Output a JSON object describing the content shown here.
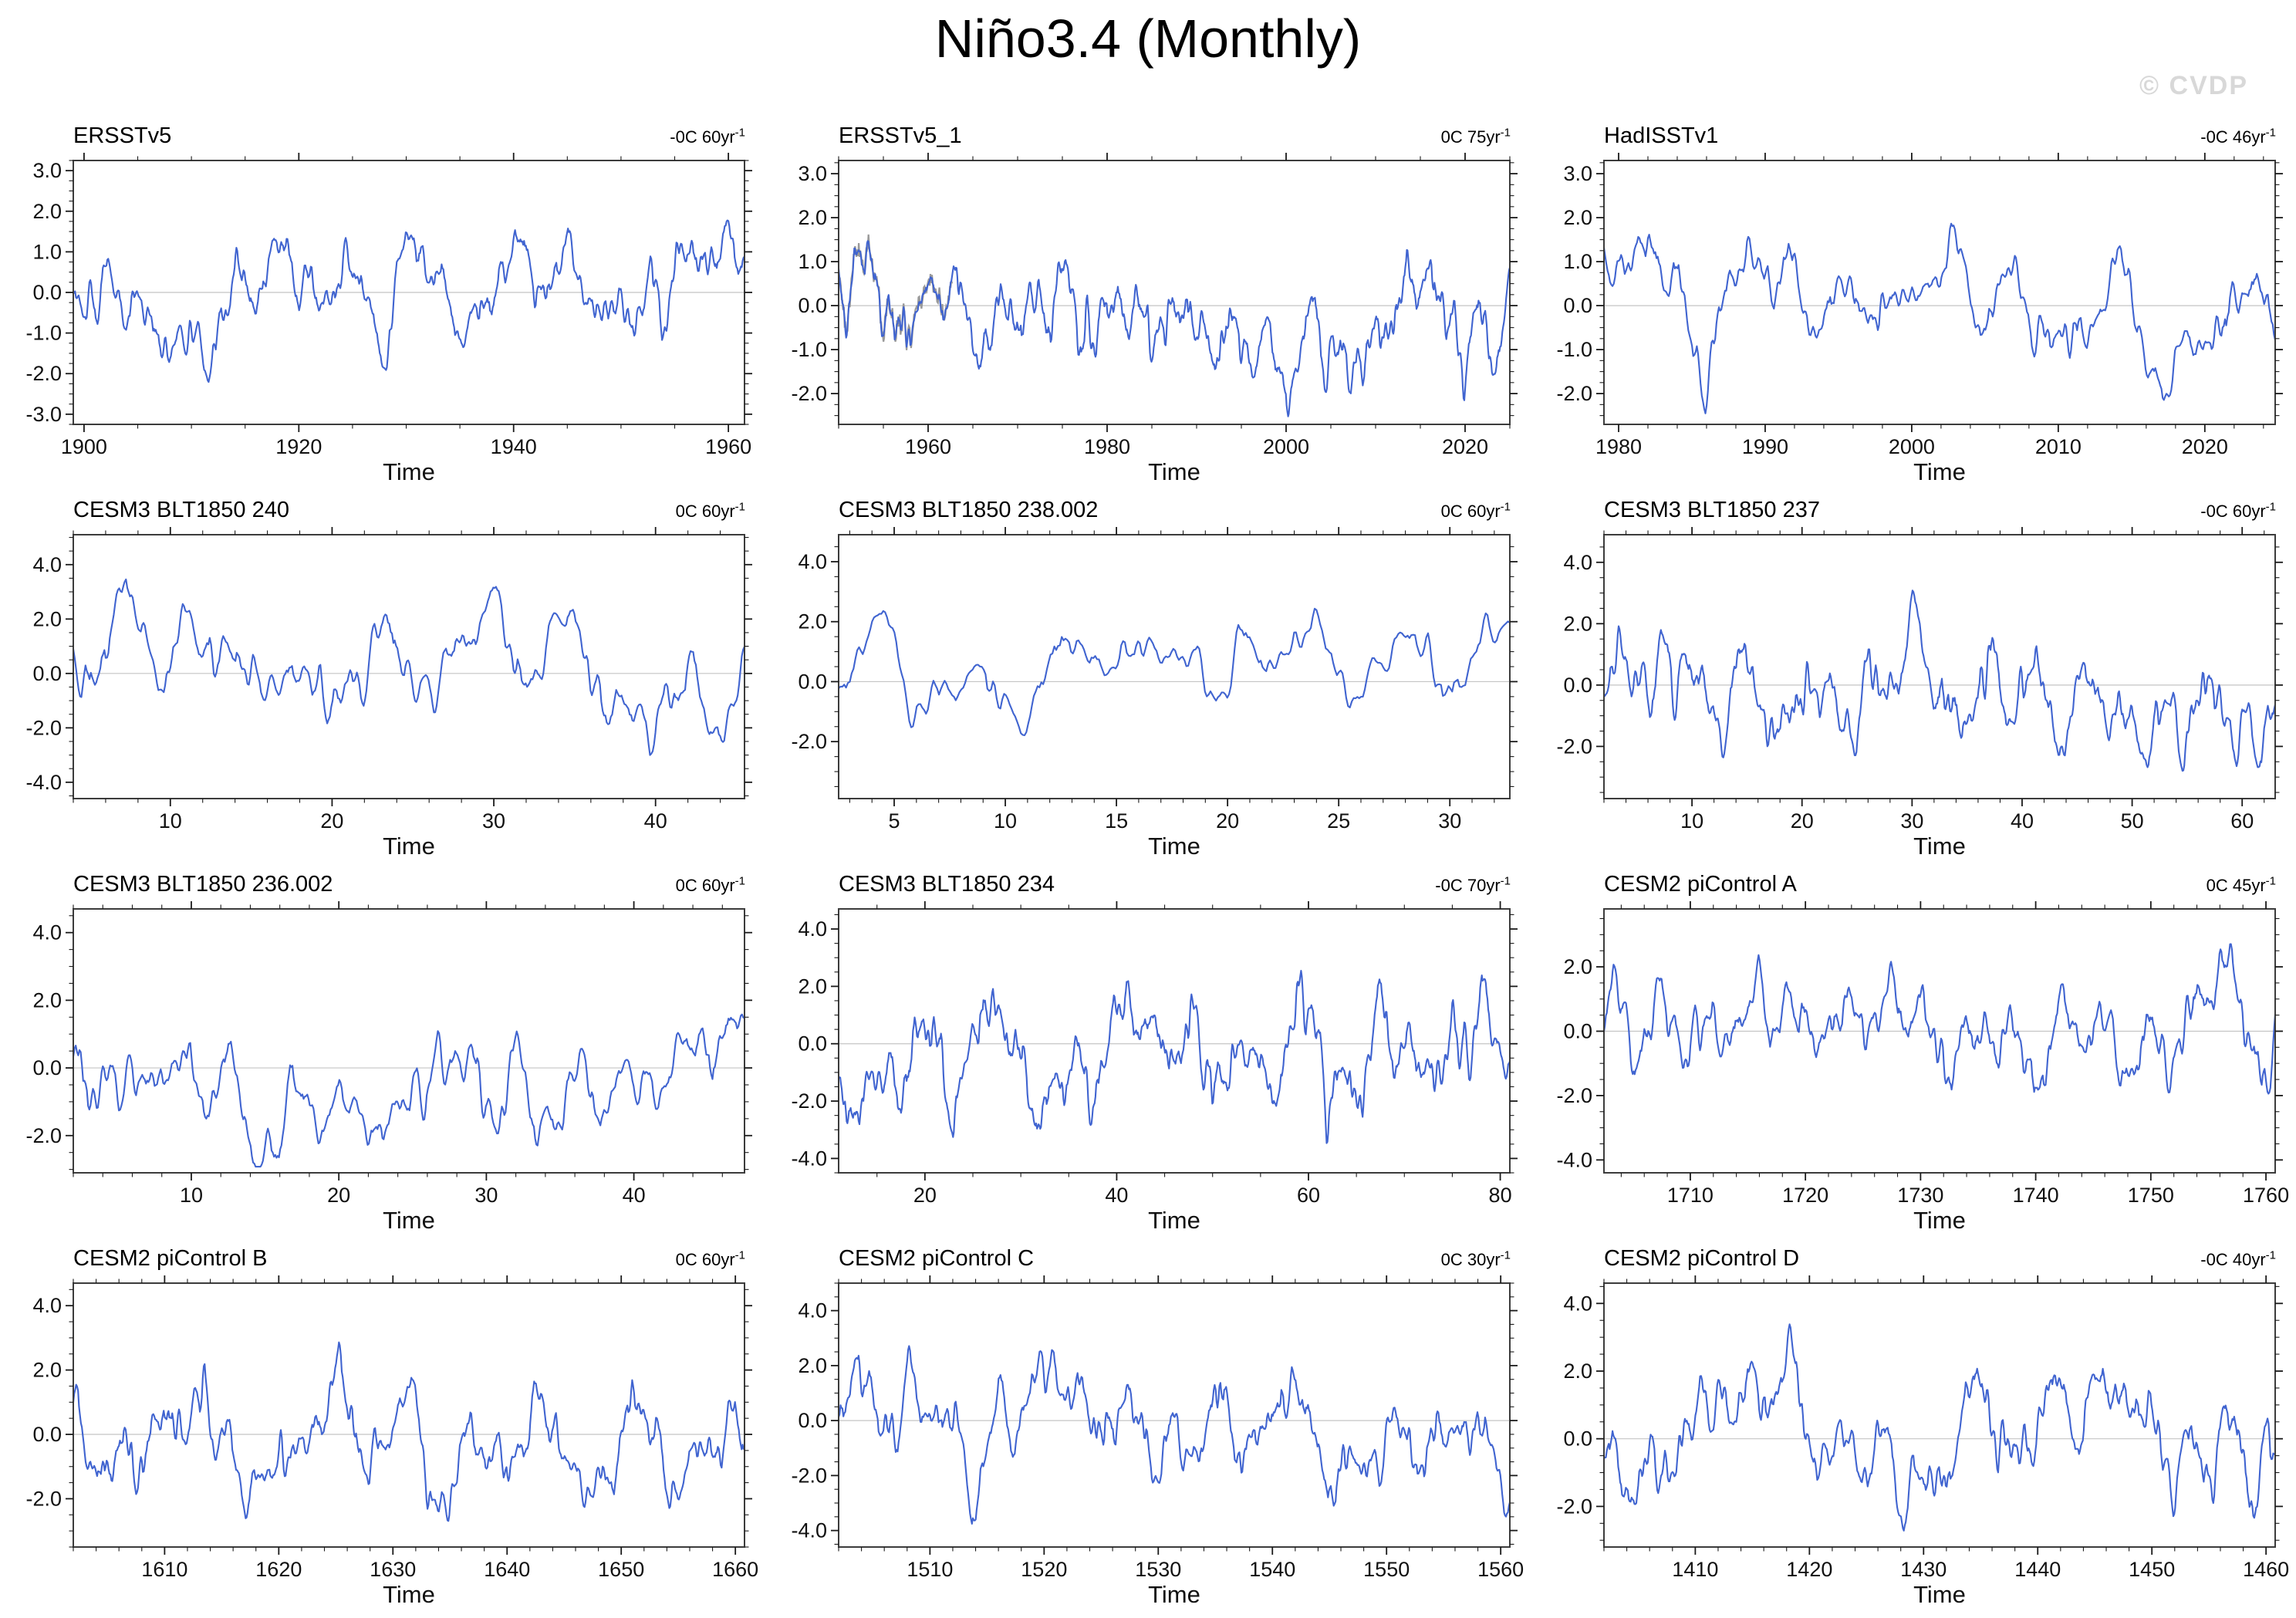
{
  "page": {
    "title": "Niño3.4 (Monthly)",
    "watermark": "© CVDP"
  },
  "colors": {
    "line": "#4064d0",
    "shadow": "#9a9a9a",
    "zero_line": "#c4c4c4",
    "frame": "#3c3c3c",
    "tick": "#1a1a1a",
    "label": "#111111",
    "watermark": "#d8d8d8"
  },
  "chart_data": [
    {
      "type": "line",
      "title": "ERSSTv5",
      "trend": "-0C 60yr",
      "trend_sup": "-1",
      "xlabel": "Time",
      "xlim": [
        1899,
        1961.5
      ],
      "ylim": [
        -3.25,
        3.25
      ],
      "xticks": [
        1900,
        1920,
        1940,
        1960
      ],
      "x_minor_step": 5,
      "yticks": [
        3.0,
        2.0,
        1.0,
        0.0,
        -1.0,
        -2.0,
        -3.0
      ],
      "y_minor_step": 0.25,
      "seed": 101,
      "amp": 0.95
    },
    {
      "type": "line",
      "title": "ERSSTv5_1",
      "trend": "0C 75yr",
      "trend_sup": "-1",
      "xlabel": "Time",
      "xlim": [
        1950,
        2025
      ],
      "ylim": [
        -2.7,
        3.3
      ],
      "xticks": [
        1960,
        1980,
        2000,
        2020
      ],
      "x_minor_step": 5,
      "yticks": [
        3.0,
        2.0,
        1.0,
        0.0,
        -1.0,
        -2.0
      ],
      "y_minor_step": 0.25,
      "seed": 202,
      "amp": 0.95,
      "shadow_fraction": 0.17
    },
    {
      "type": "line",
      "title": "HadISSTv1",
      "trend": "-0C 46yr",
      "trend_sup": "-1",
      "xlabel": "Time",
      "xlim": [
        1979,
        2024.8
      ],
      "ylim": [
        -2.7,
        3.3
      ],
      "xticks": [
        1980,
        1990,
        2000,
        2010,
        2020
      ],
      "x_minor_step": 2,
      "yticks": [
        3.0,
        2.0,
        1.0,
        0.0,
        -1.0,
        -2.0
      ],
      "y_minor_step": 0.25,
      "seed": 303,
      "amp": 0.95
    },
    {
      "type": "line",
      "title": "CESM3 BLT1850 240",
      "trend": "0C 60yr",
      "trend_sup": "-1",
      "xlabel": "Time",
      "xlim": [
        4,
        45.5
      ],
      "ylim": [
        -4.6,
        5.1
      ],
      "xticks": [
        10,
        20,
        30,
        40
      ],
      "x_minor_step": 2,
      "yticks": [
        4.0,
        2.0,
        0.0,
        -2.0,
        -4.0
      ],
      "y_minor_step": 0.5,
      "seed": 404,
      "amp": 1.45
    },
    {
      "type": "line",
      "title": "CESM3 BLT1850 238.002",
      "trend": "0C 60yr",
      "trend_sup": "-1",
      "xlabel": "Time",
      "xlim": [
        2.5,
        32.7
      ],
      "ylim": [
        -3.9,
        4.9
      ],
      "xticks": [
        5,
        10,
        15,
        20,
        25,
        30
      ],
      "x_minor_step": 1,
      "yticks": [
        4.0,
        2.0,
        0.0,
        -2.0
      ],
      "y_minor_step": 0.5,
      "seed": 505,
      "amp": 1.35
    },
    {
      "type": "line",
      "title": "CESM3 BLT1850 237",
      "trend": "-0C 60yr",
      "trend_sup": "-1",
      "xlabel": "Time",
      "xlim": [
        2,
        63
      ],
      "ylim": [
        -3.7,
        4.9
      ],
      "xticks": [
        10,
        20,
        30,
        40,
        50,
        60
      ],
      "x_minor_step": 2,
      "yticks": [
        4.0,
        2.0,
        0.0,
        -2.0
      ],
      "y_minor_step": 0.5,
      "seed": 606,
      "amp": 1.35
    },
    {
      "type": "line",
      "title": "CESM3 BLT1850 236.002",
      "trend": "0C 60yr",
      "trend_sup": "-1",
      "xlabel": "Time",
      "xlim": [
        2,
        47.5
      ],
      "ylim": [
        -3.1,
        4.7
      ],
      "xticks": [
        10,
        20,
        30,
        40
      ],
      "x_minor_step": 2,
      "yticks": [
        4.0,
        2.0,
        0.0,
        -2.0
      ],
      "y_minor_step": 0.5,
      "seed": 707,
      "amp": 1.3
    },
    {
      "type": "line",
      "title": "CESM3 BLT1850 234",
      "trend": "-0C 70yr",
      "trend_sup": "-1",
      "xlabel": "Time",
      "xlim": [
        11,
        81
      ],
      "ylim": [
        -4.5,
        4.7
      ],
      "xticks": [
        20,
        40,
        60,
        80
      ],
      "x_minor_step": 5,
      "yticks": [
        4.0,
        2.0,
        0.0,
        -2.0,
        -4.0
      ],
      "y_minor_step": 0.5,
      "seed": 808,
      "amp": 1.45
    },
    {
      "type": "line",
      "title": "CESM2 piControl A",
      "trend": "0C 45yr",
      "trend_sup": "-1",
      "xlabel": "Time",
      "xlim": [
        1702.5,
        1760.8
      ],
      "ylim": [
        -4.4,
        3.8
      ],
      "xticks": [
        1710,
        1720,
        1730,
        1740,
        1750,
        1760
      ],
      "x_minor_step": 2,
      "yticks": [
        2.0,
        0.0,
        -2.0,
        -4.0
      ],
      "y_minor_step": 0.5,
      "seed": 909,
      "amp": 1.3
    },
    {
      "type": "line",
      "title": "CESM2 piControl B",
      "trend": "0C 60yr",
      "trend_sup": "-1",
      "xlabel": "Time",
      "xlim": [
        1602,
        1660.8
      ],
      "ylim": [
        -3.5,
        4.7
      ],
      "xticks": [
        1610,
        1620,
        1630,
        1640,
        1650,
        1660
      ],
      "x_minor_step": 2,
      "yticks": [
        4.0,
        2.0,
        0.0,
        -2.0
      ],
      "y_minor_step": 0.5,
      "seed": 1010,
      "amp": 1.3
    },
    {
      "type": "line",
      "title": "CESM2 piControl C",
      "trend": "0C 30yr",
      "trend_sup": "-1",
      "xlabel": "Time",
      "xlim": [
        1502,
        1560.8
      ],
      "ylim": [
        -4.6,
        5.0
      ],
      "xticks": [
        1510,
        1520,
        1530,
        1540,
        1550,
        1560
      ],
      "x_minor_step": 2,
      "yticks": [
        4.0,
        2.0,
        0.0,
        -2.0,
        -4.0
      ],
      "y_minor_step": 0.5,
      "seed": 1111,
      "amp": 1.5
    },
    {
      "type": "line",
      "title": "CESM2 piControl D",
      "trend": "-0C 40yr",
      "trend_sup": "-1",
      "xlabel": "Time",
      "xlim": [
        1402,
        1460.8
      ],
      "ylim": [
        -3.2,
        4.6
      ],
      "xticks": [
        1410,
        1420,
        1430,
        1440,
        1450,
        1460
      ],
      "x_minor_step": 2,
      "yticks": [
        4.0,
        2.0,
        0.0,
        -2.0
      ],
      "y_minor_step": 0.5,
      "seed": 1212,
      "amp": 1.3
    }
  ]
}
